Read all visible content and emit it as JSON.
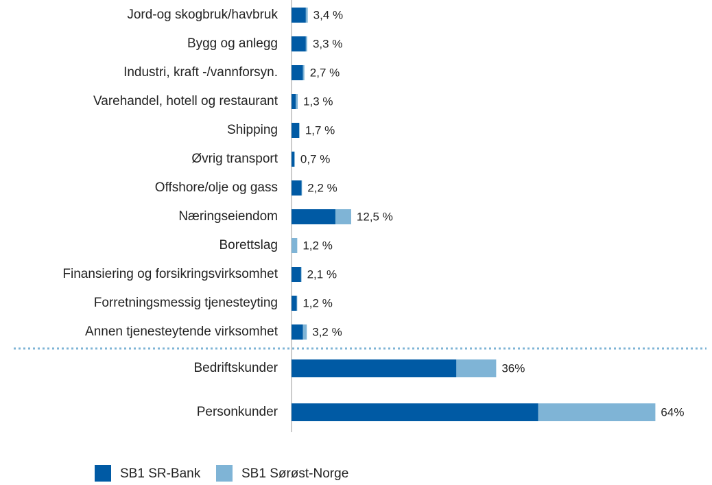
{
  "chart_data": [
    {
      "type": "stacked_barh",
      "categories": [
        "Jord-og skogbruk/havbruk",
        "Bygg og anlegg",
        "Industri, kraft -/vannforsyn.",
        "Varehandel, hotell og restaurant",
        "Shipping",
        "Øvrig transport",
        "Offshore/olje og gass",
        "Næringseiendom",
        "Borettslag",
        "Finansiering og forsikringsvirksomhet",
        "Forretningsmessig tjenesteyting",
        "Annen tjenesteytende virksomhet"
      ],
      "series": [
        {
          "name": "SB1 SR-Bank",
          "color": "#005aa4",
          "values": [
            3.0,
            3.0,
            2.4,
            0.9,
            1.6,
            0.6,
            2.1,
            9.2,
            0,
            2.0,
            1.1,
            2.4
          ]
        },
        {
          "name": "SB1 Sørøst-Norge",
          "color": "#7fb4d6",
          "values": [
            0.4,
            0.3,
            0.3,
            0.4,
            0.1,
            0.1,
            0.1,
            3.3,
            1.2,
            0.1,
            0.1,
            0.8
          ]
        }
      ],
      "total_labels": [
        "3,4 %",
        "3,3 %",
        "2,7 %",
        "1,3 %",
        "1,7 %",
        "0,7 %",
        "2,2 %",
        "12,5 %",
        "1,2 %",
        "2,1 %",
        "1,2 %",
        "3,2 %"
      ],
      "xlim": [
        0,
        87
      ]
    },
    {
      "type": "stacked_barh",
      "categories": [
        "Bedriftskunder",
        "Personkunder"
      ],
      "series": [
        {
          "color": "#005aa4",
          "values": [
            29,
            43.4
          ]
        },
        {
          "color": "#7fb4d6",
          "values": [
            7,
            20.6
          ]
        }
      ],
      "total_labels": [
        "36%",
        "64%"
      ],
      "xlim": [
        0,
        73
      ]
    }
  ]
}
